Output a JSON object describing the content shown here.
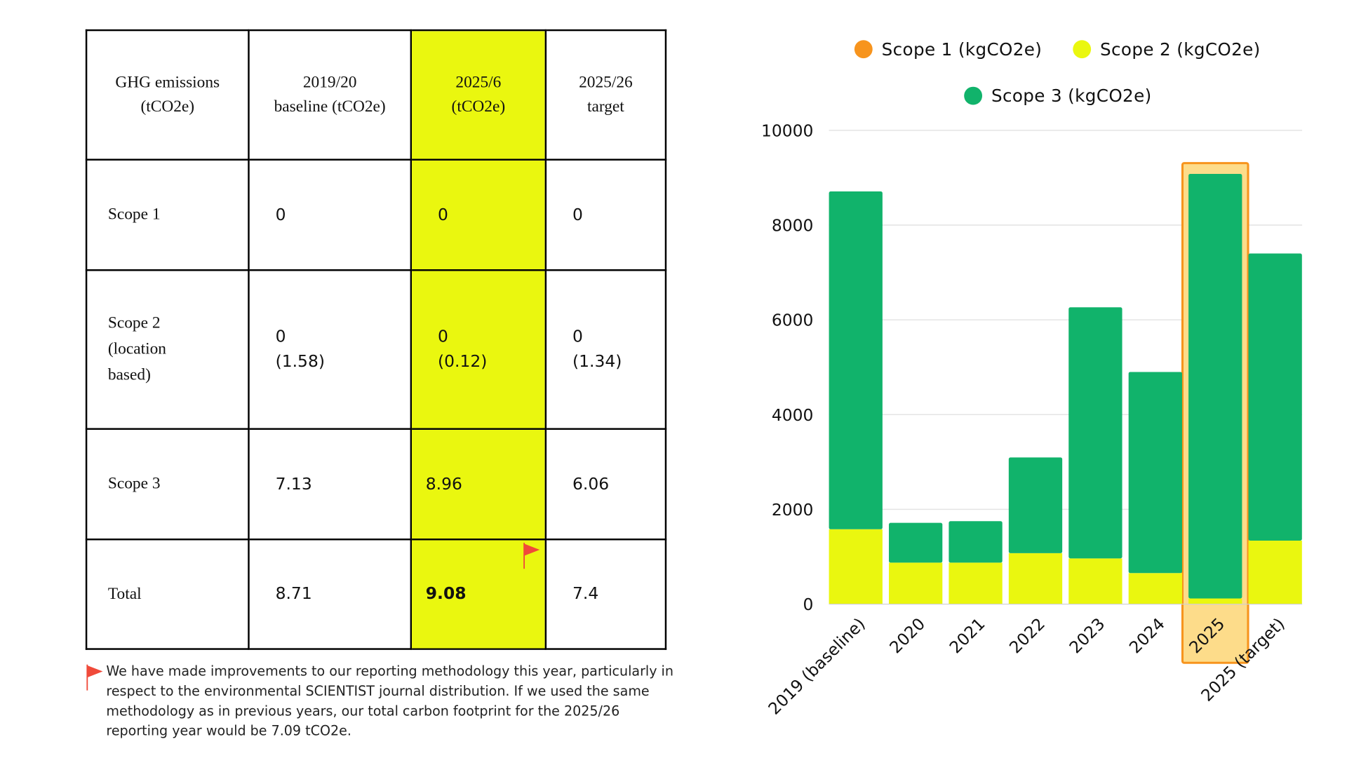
{
  "table": {
    "headers": [
      "GHG emissions\n(tCO2e)",
      "2019/20\nbaseline (tCO2e)",
      "2025/6\n(tCO2e)",
      "2025/26\ntarget"
    ],
    "rows": [
      {
        "label": "Scope 1",
        "values": [
          "0",
          "0",
          "0"
        ]
      },
      {
        "label": "Scope 2\n(location\nbased)",
        "values": [
          "0\n(1.58)",
          "0\n(0.12)",
          "0\n(1.34)"
        ]
      },
      {
        "label": "Scope 3",
        "values": [
          "7.13",
          "8.96",
          "6.06"
        ]
      },
      {
        "label": "Total",
        "values": [
          "8.71",
          "9.08",
          "7.4"
        ]
      }
    ],
    "highlight_color": "#eaf70f",
    "flag_icon": "red-flag-icon"
  },
  "footnote": "We have made improvements to our reporting methodology this year, particularly in respect to the environmental SCIENTIST journal distribution. If we used the same methodology as in previous years, our total carbon footprint for the 2025/26 reporting year would be 7.09 tCO2e.",
  "chart_data": {
    "type": "bar",
    "stacked": true,
    "categories": [
      "2019 (baseline)",
      "2020",
      "2021",
      "2022",
      "2023",
      "2024",
      "2025",
      "2025 (target)"
    ],
    "series": [
      {
        "name": "Scope 1 (kgCO2e)",
        "color": "#f7941d",
        "values": [
          0,
          0,
          0,
          0,
          0,
          0,
          0,
          0
        ]
      },
      {
        "name": "Scope 2 (kgCO2e)",
        "color": "#eaf70f",
        "values": [
          1580,
          875,
          875,
          1075,
          965,
          655,
          120,
          1340
        ]
      },
      {
        "name": "Scope 3 (kgCO2e)",
        "color": "#11b36b",
        "values": [
          7130,
          840,
          875,
          2020,
          5300,
          4245,
          8960,
          6060
        ]
      }
    ],
    "yticks": [
      "0",
      "2000",
      "4000",
      "6000",
      "8000",
      "10000"
    ],
    "ylim": [
      0,
      10000
    ],
    "grid": true,
    "legend": "top",
    "highlighted_category": "2025",
    "highlight_color": "#f7941d"
  }
}
